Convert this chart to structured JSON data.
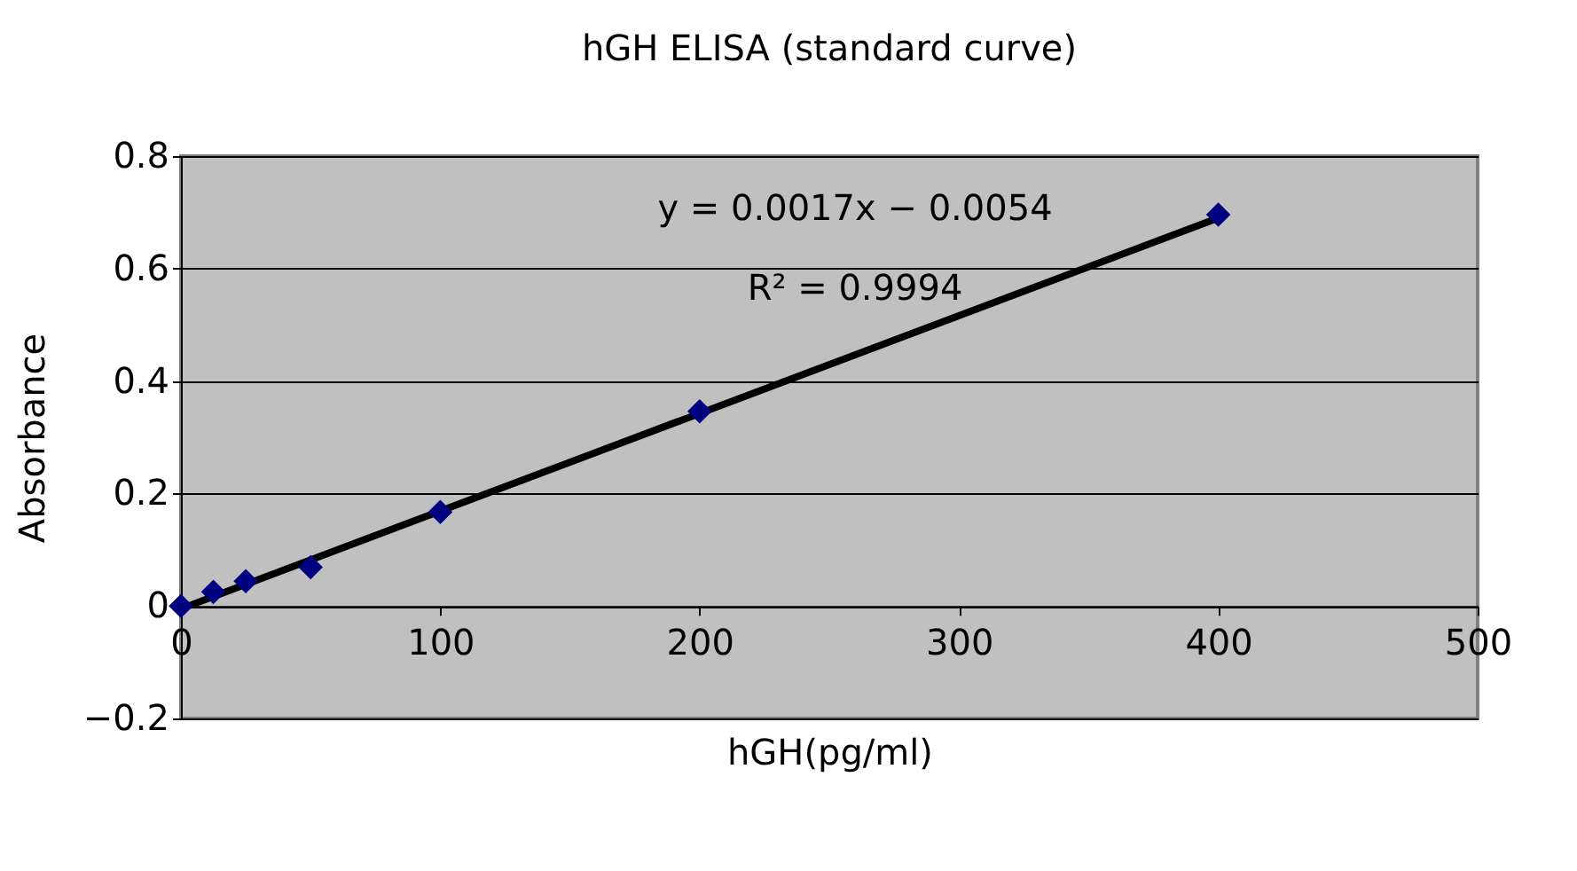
{
  "chart_data": {
    "type": "scatter",
    "title": "hGH ELISA (standard curve)",
    "xlabel": "hGH(pg/ml)",
    "ylabel": "Absorbance",
    "series": [
      {
        "type": "scatter",
        "color": "#000080",
        "marker": "diamond",
        "x": [
          0,
          12.5,
          25,
          50,
          100,
          200,
          400
        ],
        "values": [
          0,
          0.025,
          0.044,
          0.069,
          0.167,
          0.346,
          0.696
        ]
      },
      {
        "type": "line",
        "color": "#000000",
        "line_style": "solid",
        "x": [
          0,
          400
        ],
        "values": [
          -0.005,
          0.69
        ]
      }
    ],
    "annotations": [
      "y = 0.0017x − 0.0054",
      "R² = 0.9994"
    ],
    "xlim": [
      0,
      500
    ],
    "xticks": [
      0,
      100,
      200,
      300,
      400,
      500
    ],
    "ylim": [
      -0.2,
      0.8
    ],
    "yticks": [
      -0.2,
      0,
      0.2,
      0.4,
      0.6,
      0.8
    ],
    "grid": "y"
  }
}
